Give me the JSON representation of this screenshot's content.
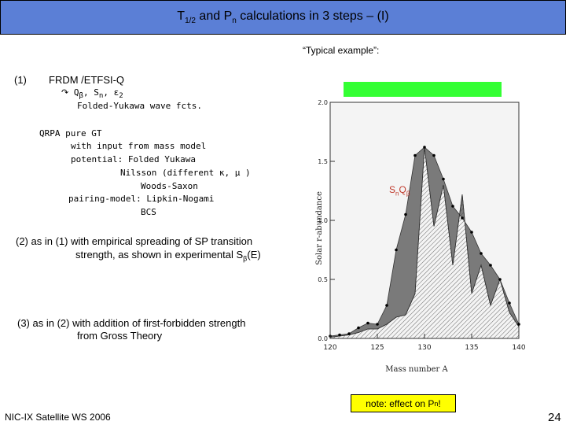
{
  "header": {
    "title_main": "T",
    "title_sub1": "1/2",
    "title_mid": " and P",
    "title_sub2": "n",
    "title_end": " calculations in 3 steps – (I)"
  },
  "example_label": "“Typical example”:",
  "step1": {
    "num": "(1)",
    "line1": "FRDM /ETFSI-Q",
    "arrow": "↷",
    "line2a": "Q",
    "line2b": "β",
    "line2c": ", S",
    "line2d": "n",
    "line2e": ", ε",
    "line2f": "2",
    "line3": "Folded-Yukawa wave fcts.",
    "qrpa": "QRPA  pure GT",
    "qrpa2": "with input from mass model",
    "qrpa3": "potential: Folded Yukawa",
    "qrpa4": "Nilsson (different κ, μ )",
    "qrpa5": "Woods-Saxon",
    "qrpa6": "pairing-model: Lipkin-Nogami",
    "qrpa7": "BCS"
  },
  "step2": {
    "line1": "(2) as in (1) with empirical spreading of SP transition",
    "line2a": "strength, as shown in experimental S",
    "line2b": "β",
    "line2c": "(E)"
  },
  "step3": {
    "line1": "(3) as in (2) with addition of first-forbidden strength",
    "line2": "from Gross Theory"
  },
  "chart_label": {
    "a": "S",
    "b": "n",
    "c": "Q",
    "d": "β"
  },
  "note": {
    "a": "note: effect on P",
    "b": "n",
    "c": " !"
  },
  "footer": {
    "conference": "NIC-IX Satellite WS 2006",
    "page": "24"
  },
  "colors": {
    "title_bar": "#5b7fd6",
    "highlight": "#33ff33",
    "note": "#ffff00",
    "label": "#c0392b"
  },
  "chart_data": {
    "type": "area",
    "title": "",
    "xlabel": "Mass number A",
    "ylabel": "Solar r-abundance",
    "xlim": [
      120,
      140
    ],
    "ylim": [
      0,
      2.0
    ],
    "xticks": [
      "120",
      "125",
      "130",
      "135",
      "140"
    ],
    "yticks": [
      "0.0",
      "0.5",
      "1.0",
      "1.5",
      "2.0"
    ],
    "series": [
      {
        "x": [
          120,
          121,
          122,
          123,
          124,
          125,
          126,
          127,
          128,
          129,
          130,
          131,
          132,
          133,
          134,
          135,
          136,
          137,
          138,
          139,
          140
        ],
        "values": [
          0.02,
          0.03,
          0.04,
          0.09,
          0.13,
          0.12,
          0.28,
          0.75,
          1.05,
          1.55,
          1.62,
          1.55,
          1.35,
          1.12,
          1.02,
          0.9,
          0.72,
          0.62,
          0.5,
          0.3,
          0.12
        ]
      },
      {
        "x": [
          120,
          121,
          122,
          123,
          124,
          125,
          126,
          127,
          128,
          129,
          130,
          131,
          132,
          133,
          134,
          135,
          136,
          137,
          138,
          139,
          140
        ],
        "values": [
          0.01,
          0.02,
          0.03,
          0.05,
          0.08,
          0.08,
          0.12,
          0.18,
          0.2,
          0.38,
          1.62,
          0.95,
          1.3,
          0.62,
          1.22,
          0.38,
          0.62,
          0.28,
          0.5,
          0.22,
          0.1
        ]
      }
    ]
  }
}
